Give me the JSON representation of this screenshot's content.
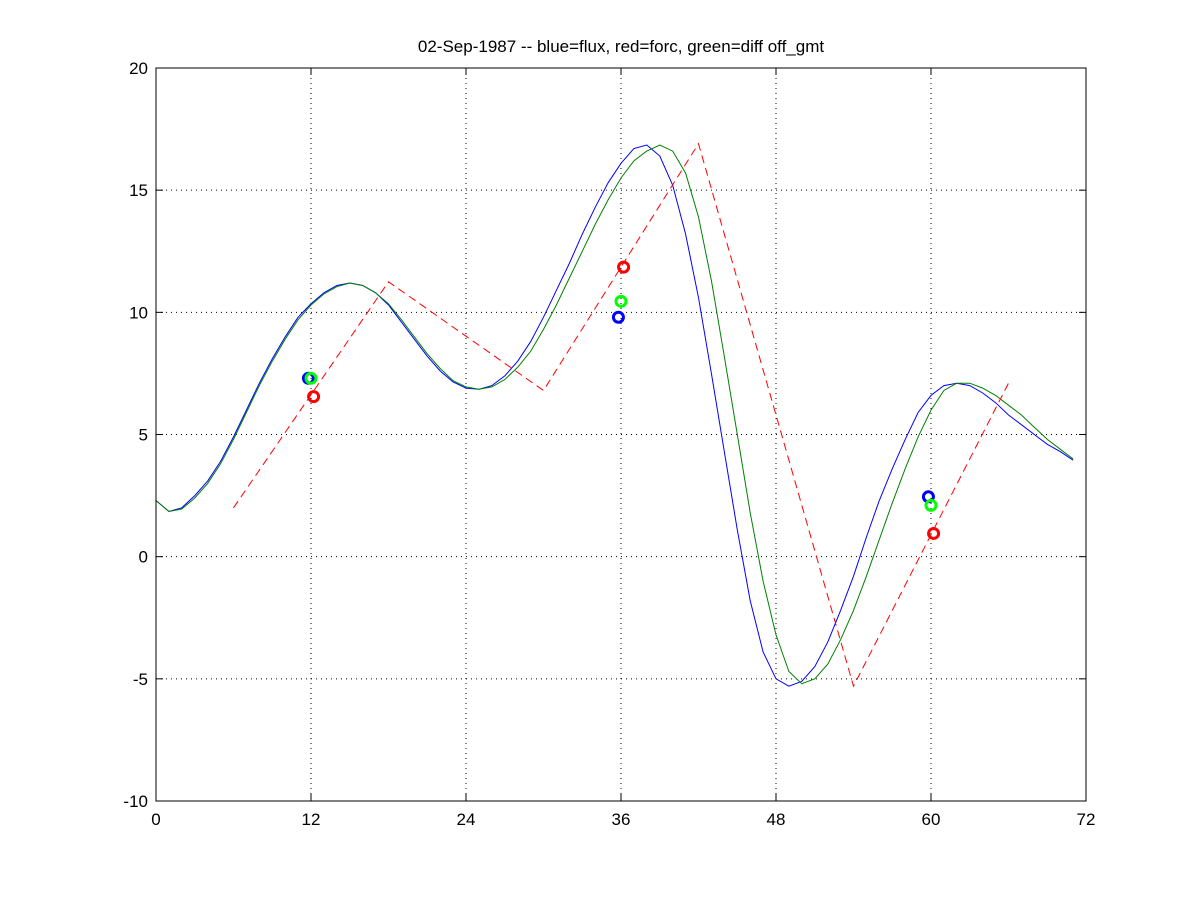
{
  "chart_data": {
    "type": "line",
    "title": "02-Sep-1987 -- blue=flux, red=forc, green=diff off_gmt",
    "xlabel": "",
    "ylabel": "",
    "xlim": [
      0,
      72
    ],
    "ylim": [
      -10,
      20
    ],
    "xticks": [
      0,
      12,
      24,
      36,
      48,
      60,
      72
    ],
    "yticks": [
      -10,
      -5,
      0,
      5,
      10,
      15,
      20
    ],
    "grid": true,
    "colors": {
      "blue": "#0000ff",
      "green": "#008000",
      "red": "#ff0000",
      "green_marker": "#00ff00"
    },
    "series": [
      {
        "color": "blue",
        "style": "solid",
        "x": [
          0,
          1,
          2,
          3,
          4,
          5,
          6,
          7,
          8,
          9,
          10,
          11,
          12,
          13,
          14,
          15,
          16,
          17,
          18,
          19,
          20,
          21,
          22,
          23,
          24,
          25,
          26,
          27,
          28,
          29,
          30,
          31,
          32,
          33,
          34,
          35,
          36,
          37,
          38,
          39,
          40,
          41,
          42,
          43,
          44,
          45,
          46,
          47,
          48,
          49,
          50,
          51,
          52,
          53,
          54,
          55,
          56,
          57,
          58,
          59,
          60,
          61,
          62,
          63,
          64,
          65,
          66,
          67,
          68,
          69,
          70,
          71
        ],
        "y": [
          2.3,
          1.85,
          2.0,
          2.5,
          3.1,
          3.9,
          4.9,
          6.0,
          7.1,
          8.1,
          9.0,
          9.8,
          10.35,
          10.8,
          11.1,
          11.2,
          11.1,
          10.8,
          10.3,
          9.6,
          8.9,
          8.2,
          7.6,
          7.15,
          6.9,
          6.85,
          7.0,
          7.4,
          8.0,
          8.8,
          9.8,
          10.9,
          12.0,
          13.2,
          14.3,
          15.3,
          16.1,
          16.7,
          16.85,
          16.4,
          15.2,
          13.2,
          10.6,
          7.5,
          4.3,
          1.1,
          -1.8,
          -3.9,
          -5.0,
          -5.3,
          -5.1,
          -4.5,
          -3.5,
          -2.2,
          -0.8,
          0.8,
          2.3,
          3.6,
          4.8,
          5.9,
          6.6,
          7.0,
          7.1,
          7.0,
          6.7,
          6.3,
          5.8,
          5.4,
          5.0,
          4.6,
          4.3,
          3.95
        ]
      },
      {
        "color": "green",
        "style": "solid",
        "x": [
          0,
          1,
          2,
          3,
          4,
          5,
          6,
          7,
          8,
          9,
          10,
          11,
          12,
          13,
          14,
          15,
          16,
          17,
          18,
          19,
          20,
          21,
          22,
          23,
          24,
          25,
          26,
          27,
          28,
          29,
          30,
          31,
          32,
          33,
          34,
          35,
          36,
          37,
          38,
          39,
          40,
          41,
          42,
          43,
          44,
          45,
          46,
          47,
          48,
          49,
          50,
          51,
          52,
          53,
          54,
          55,
          56,
          57,
          58,
          59,
          60,
          61,
          62,
          63,
          64,
          65,
          66,
          67,
          68,
          69,
          70,
          71
        ],
        "y": [
          2.3,
          1.85,
          1.95,
          2.4,
          3.0,
          3.8,
          4.8,
          5.9,
          7.0,
          8.0,
          8.9,
          9.7,
          10.3,
          10.75,
          11.05,
          11.2,
          11.1,
          10.8,
          10.35,
          9.7,
          9.0,
          8.3,
          7.7,
          7.2,
          6.95,
          6.85,
          6.95,
          7.25,
          7.75,
          8.4,
          9.3,
          10.3,
          11.4,
          12.5,
          13.6,
          14.6,
          15.5,
          16.2,
          16.6,
          16.85,
          16.6,
          15.7,
          13.9,
          11.3,
          8.2,
          5.0,
          1.8,
          -1.0,
          -3.2,
          -4.7,
          -5.2,
          -5.0,
          -4.4,
          -3.4,
          -2.2,
          -0.8,
          0.7,
          2.2,
          3.6,
          4.9,
          6.0,
          6.8,
          7.1,
          7.1,
          6.9,
          6.6,
          6.2,
          5.8,
          5.3,
          4.8,
          4.4,
          4.0
        ]
      },
      {
        "color": "red",
        "style": "dashed",
        "x": [
          6,
          18,
          30,
          42,
          54,
          66
        ],
        "y": [
          2.0,
          11.25,
          6.8,
          16.9,
          -5.3,
          7.1
        ]
      }
    ],
    "markers": [
      {
        "color": "blue",
        "shape": "circle",
        "points": [
          [
            11.8,
            7.3
          ],
          [
            35.8,
            9.8
          ],
          [
            59.8,
            2.45
          ]
        ]
      },
      {
        "color": "green_marker",
        "shape": "circle",
        "points": [
          [
            12.0,
            7.3
          ],
          [
            36.0,
            10.45
          ],
          [
            60.0,
            2.1
          ]
        ]
      },
      {
        "color": "red",
        "shape": "circle",
        "points": [
          [
            12.2,
            6.55
          ],
          [
            36.2,
            11.85
          ],
          [
            60.2,
            0.95
          ]
        ]
      }
    ]
  }
}
